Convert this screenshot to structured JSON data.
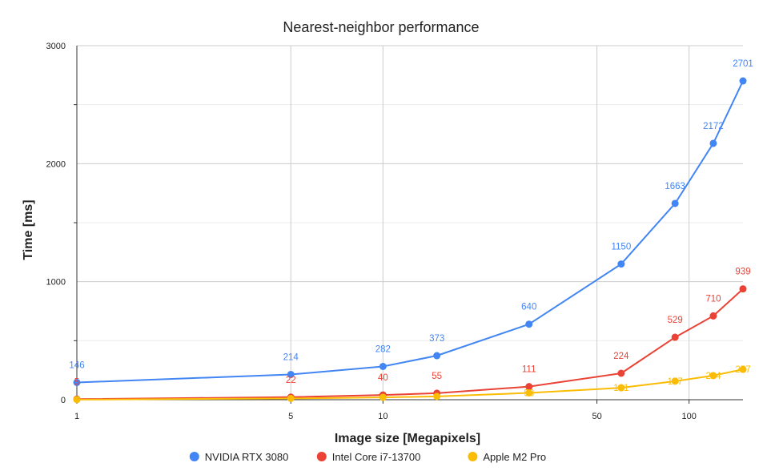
{
  "chart_data": {
    "type": "line",
    "title": "Nearest-neighbor performance",
    "xlabel": "Image size [Megapixels]",
    "ylabel": "Time [ms]",
    "xscale": "log",
    "xlim": [
      1,
      150
    ],
    "ylim": [
      0,
      3000
    ],
    "x_ticks": [
      1,
      5,
      10,
      50,
      100
    ],
    "y_ticks": [
      0,
      1000,
      2000,
      3000
    ],
    "grid": true,
    "legend": "bottom",
    "series": [
      {
        "name": "NVIDIA RTX 3080",
        "color": "#4285f4",
        "points": [
          {
            "x": 1,
            "y": 146
          },
          {
            "x": 5,
            "y": 214
          },
          {
            "x": 10,
            "y": 282
          },
          {
            "x": 15,
            "y": 373
          },
          {
            "x": 30,
            "y": 640
          },
          {
            "x": 60,
            "y": 1150
          },
          {
            "x": 90,
            "y": 1663
          },
          {
            "x": 120,
            "y": 2172
          },
          {
            "x": 150,
            "y": 2701
          }
        ]
      },
      {
        "name": "Intel Core i7-13700",
        "color": "#ea4335",
        "points": [
          {
            "x": 1,
            "y": 5
          },
          {
            "x": 5,
            "y": 22
          },
          {
            "x": 10,
            "y": 40
          },
          {
            "x": 15,
            "y": 55
          },
          {
            "x": 30,
            "y": 111
          },
          {
            "x": 60,
            "y": 224
          },
          {
            "x": 90,
            "y": 529
          },
          {
            "x": 120,
            "y": 710
          },
          {
            "x": 150,
            "y": 939
          }
        ]
      },
      {
        "name": "Apple M2 Pro",
        "color": "#fbbc04",
        "points": [
          {
            "x": 1,
            "y": 1
          },
          {
            "x": 5,
            "y": 11
          },
          {
            "x": 10,
            "y": 20
          },
          {
            "x": 15,
            "y": 28
          },
          {
            "x": 30,
            "y": 58
          },
          {
            "x": 60,
            "y": 101
          },
          {
            "x": 90,
            "y": 157
          },
          {
            "x": 120,
            "y": 204
          },
          {
            "x": 150,
            "y": 257
          }
        ],
        "labels_from_index": 4
      }
    ]
  }
}
